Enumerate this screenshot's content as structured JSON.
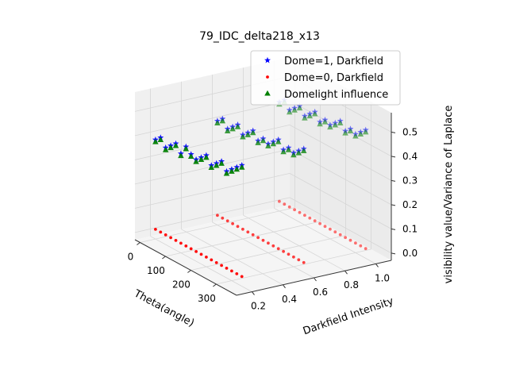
{
  "chart_data": {
    "type": "scatter",
    "title": "79_IDC_delta218_x13",
    "xlabel": "Theta(angle)",
    "ylabel": "Darkfield Intensity",
    "zlabel": "visibility value/Variance of Laplace",
    "x_ticks": [
      "0",
      "100",
      "200",
      "300"
    ],
    "y_ticks": [
      "0.2",
      "0.4",
      "0.6",
      "0.8",
      "1.0"
    ],
    "z_ticks": [
      "0.0",
      "0.1",
      "0.2",
      "0.3",
      "0.4",
      "0.5"
    ],
    "xlim": [
      -20,
      380
    ],
    "ylim": [
      0.1,
      1.1
    ],
    "zlim": [
      -0.03,
      0.58
    ],
    "legend": "top-right",
    "grid": true,
    "series": [
      {
        "name": "Dome=1, Darkfield",
        "marker": "star",
        "color": "#0000ff",
        "note_values": "theta = 0..340 step 20 for each darkfield intensity level",
        "theta": [
          0,
          20,
          40,
          60,
          80,
          100,
          120,
          140,
          160,
          180,
          200,
          220,
          240,
          260,
          280,
          300,
          320,
          340
        ],
        "darkfield": [
          0.2,
          0.6,
          1.0
        ],
        "values": [
          [
            0.38,
            0.4,
            0.37,
            0.39,
            0.41,
            0.38,
            0.42,
            0.4,
            0.39,
            0.41,
            0.43,
            0.4,
            0.42,
            0.44,
            0.41,
            0.43,
            0.45,
            0.47
          ],
          [
            0.4,
            0.42,
            0.39,
            0.41,
            0.43,
            0.4,
            0.42,
            0.44,
            0.41,
            0.43,
            0.42,
            0.44,
            0.46,
            0.43,
            0.45,
            0.44,
            0.46,
            0.48
          ],
          [
            0.42,
            0.44,
            0.41,
            0.43,
            0.45,
            0.42,
            0.44,
            0.46,
            0.43,
            0.45,
            0.44,
            0.46,
            0.48,
            0.45,
            0.47,
            0.46,
            0.48,
            0.5
          ]
        ]
      },
      {
        "name": "Dome=0, Darkfield",
        "marker": "dot",
        "color": "#ff0000",
        "theta": [
          0,
          20,
          40,
          60,
          80,
          100,
          120,
          140,
          160,
          180,
          200,
          220,
          240,
          260,
          280,
          300,
          320,
          340
        ],
        "darkfield": [
          0.2,
          0.6,
          1.0
        ],
        "values": [
          [
            0.01,
            0.01,
            0.01,
            0.01,
            0.01,
            0.01,
            0.01,
            0.01,
            0.01,
            0.01,
            0.01,
            0.01,
            0.01,
            0.01,
            0.01,
            0.01,
            0.01,
            0.01
          ],
          [
            0.01,
            0.01,
            0.01,
            0.01,
            0.01,
            0.01,
            0.01,
            0.01,
            0.01,
            0.01,
            0.01,
            0.01,
            0.01,
            0.01,
            0.01,
            0.01,
            0.01,
            0.01
          ],
          [
            0.01,
            0.01,
            0.01,
            0.01,
            0.01,
            0.01,
            0.01,
            0.01,
            0.01,
            0.01,
            0.01,
            0.01,
            0.01,
            0.01,
            0.01,
            0.01,
            0.01,
            0.01
          ]
        ]
      },
      {
        "name": "Domelight influence",
        "marker": "triangle",
        "color": "#008000",
        "theta": [
          0,
          20,
          40,
          60,
          80,
          100,
          120,
          140,
          160,
          180,
          200,
          220,
          240,
          260,
          280,
          300,
          320,
          340
        ],
        "darkfield": [
          0.2,
          0.6,
          1.0
        ],
        "values": [
          [
            0.37,
            0.39,
            0.36,
            0.38,
            0.4,
            0.37,
            0.41,
            0.39,
            0.38,
            0.4,
            0.42,
            0.39,
            0.41,
            0.43,
            0.4,
            0.42,
            0.44,
            0.46
          ],
          [
            0.39,
            0.41,
            0.38,
            0.4,
            0.42,
            0.39,
            0.41,
            0.43,
            0.4,
            0.42,
            0.41,
            0.43,
            0.45,
            0.42,
            0.44,
            0.43,
            0.45,
            0.47
          ],
          [
            0.41,
            0.43,
            0.4,
            0.42,
            0.44,
            0.41,
            0.43,
            0.45,
            0.42,
            0.44,
            0.43,
            0.45,
            0.47,
            0.44,
            0.46,
            0.45,
            0.47,
            0.49
          ]
        ]
      }
    ]
  }
}
